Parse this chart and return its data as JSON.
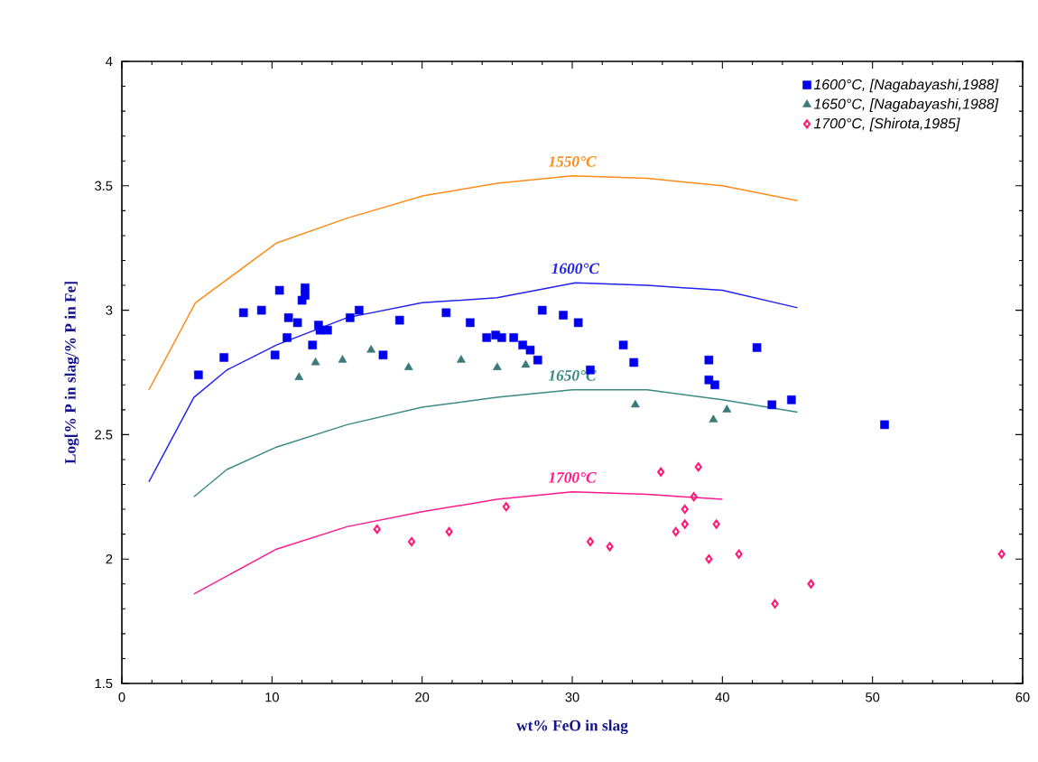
{
  "chart_data": {
    "type": "scatter",
    "xlabel": "wt% FeO in slag",
    "ylabel": "Log[% P in slag/% P in Fe]",
    "xlim": [
      0,
      60
    ],
    "xticks": [
      0,
      10,
      20,
      30,
      40,
      50,
      60
    ],
    "ylim": [
      1.5,
      4
    ],
    "yticks": [
      1.5,
      2,
      2.5,
      3,
      3.5,
      4
    ],
    "grid": false,
    "legend": "top right",
    "series": [
      {
        "type": "line",
        "marker": "none",
        "line_style": "solid",
        "color": "#ff8c1a",
        "x": [
          1.8,
          4.9,
          10.3,
          15,
          20.1,
          25,
          30,
          35,
          40,
          45
        ],
        "values": [
          2.68,
          3.03,
          3.27,
          3.37,
          3.46,
          3.51,
          3.54,
          3.53,
          3.5,
          3.44
        ]
      },
      {
        "type": "line",
        "marker": "none",
        "line_style": "solid",
        "color": "#2222ee",
        "x": [
          1.8,
          4.8,
          7,
          10.3,
          15,
          20,
          25,
          30.2,
          35,
          40,
          45
        ],
        "values": [
          2.31,
          2.65,
          2.76,
          2.86,
          2.97,
          3.03,
          3.05,
          3.11,
          3.1,
          3.08,
          3.01
        ]
      },
      {
        "type": "line",
        "marker": "none",
        "line_style": "solid",
        "color": "#3a8a84",
        "x": [
          4.8,
          7,
          10.3,
          15,
          20,
          25,
          30,
          35,
          40,
          45
        ],
        "values": [
          2.25,
          2.36,
          2.45,
          2.54,
          2.61,
          2.65,
          2.68,
          2.68,
          2.64,
          2.59
        ]
      },
      {
        "type": "line",
        "marker": "none",
        "line_style": "solid",
        "color": "#ff1a8c",
        "x": [
          4.8,
          10.3,
          15,
          20,
          25,
          30,
          35,
          40
        ],
        "values": [
          1.86,
          2.04,
          2.13,
          2.19,
          2.24,
          2.27,
          2.26,
          2.24
        ]
      },
      {
        "marker": "square",
        "name": "1600°C, [Nagabayashi,1988]",
        "color": "#0000ee",
        "x": [
          5.1,
          6.8,
          8.1,
          9.3,
          10.5,
          10.2,
          11.0,
          11.1,
          11.7,
          12.0,
          12.2,
          12.2,
          12.7,
          13.1,
          13.2,
          13.7,
          15.2,
          15.8,
          17.4,
          18.5,
          21.6,
          23.2,
          24.3,
          24.9,
          25.3,
          26.1,
          26.7,
          27.2,
          27.7,
          28.0,
          29.4,
          30.4,
          31.2,
          33.4,
          34.1,
          39.1,
          39.1,
          39.5,
          42.3,
          43.3,
          44.6,
          50.8
        ],
        "values": [
          2.74,
          2.81,
          2.99,
          3.0,
          3.08,
          2.82,
          2.89,
          2.97,
          2.95,
          3.04,
          3.09,
          3.06,
          2.86,
          2.94,
          2.92,
          2.92,
          2.97,
          3.0,
          2.82,
          2.96,
          2.99,
          2.95,
          2.89,
          2.9,
          2.89,
          2.89,
          2.86,
          2.84,
          2.8,
          3.0,
          2.98,
          2.95,
          2.76,
          2.86,
          2.79,
          2.8,
          2.72,
          2.7,
          2.85,
          2.62,
          2.64,
          2.54
        ]
      },
      {
        "marker": "triangle",
        "name": "1650°C, [Nagabayashi,1988]",
        "color": "#3a7a78",
        "x": [
          11.8,
          12.9,
          14.7,
          16.6,
          19.1,
          22.6,
          25.0,
          26.9,
          34.2,
          39.4,
          40.3
        ],
        "values": [
          2.73,
          2.79,
          2.8,
          2.84,
          2.77,
          2.8,
          2.77,
          2.78,
          2.62,
          2.56,
          2.6
        ]
      },
      {
        "marker": "diamond",
        "name": "1700°C, [Shirota,1985]",
        "color": "#ff1a75",
        "x": [
          17.0,
          19.3,
          21.8,
          25.6,
          31.2,
          32.5,
          35.9,
          38.4,
          38.1,
          37.5,
          37.5,
          36.9,
          39.6,
          39.1,
          41.1,
          43.5,
          45.9,
          58.6
        ],
        "values": [
          2.12,
          2.07,
          2.11,
          2.21,
          2.07,
          2.05,
          2.35,
          2.37,
          2.25,
          2.2,
          2.14,
          2.11,
          2.14,
          2.0,
          2.02,
          1.82,
          1.9,
          2.02
        ]
      }
    ],
    "annotations": [
      "1550°C",
      "1600°C",
      "1650°C",
      "1700°C"
    ]
  }
}
